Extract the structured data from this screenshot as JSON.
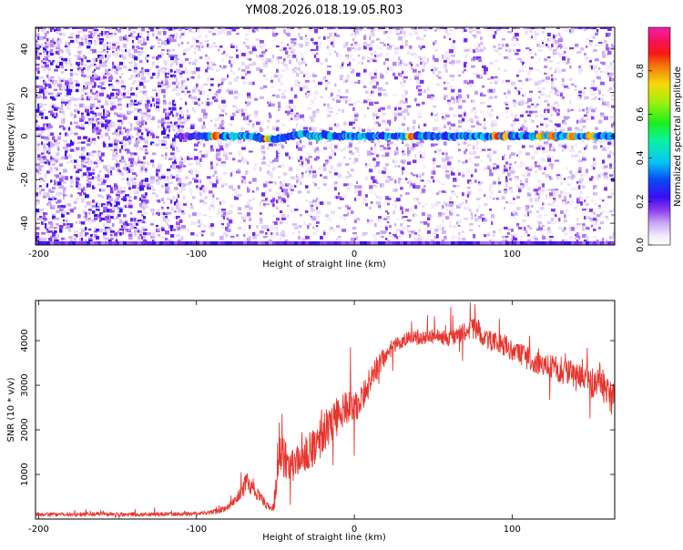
{
  "figure_title": "YM08.2026.018.19.05.R03",
  "chart_data": [
    {
      "type": "heatmap",
      "title": "YM08.2026.018.19.05.R03",
      "xlabel": "Height of straight line (km)",
      "ylabel": "Frequency (Hz)",
      "xlim": [
        -202,
        165
      ],
      "ylim": [
        -50,
        50
      ],
      "xticks": [
        -200,
        -100,
        0,
        100
      ],
      "yticks": [
        -40,
        -20,
        0,
        20,
        40
      ],
      "colorbar": {
        "label": "Normalized spectral amplitude",
        "range": [
          0,
          1
        ],
        "ticks": [
          0.0,
          0.2,
          0.4,
          0.6,
          0.8
        ],
        "tick_labels": [
          "0.0",
          "0.2",
          "0.4",
          "0.6",
          "0.8"
        ],
        "colormap": "rainbow (purple-blue-cyan-green-yellow-red-magenta)"
      },
      "ridge": {
        "frequency_hz": 0,
        "x_start_km": -110,
        "x_end_km": 165,
        "peak_amplitude": 0.9,
        "hotspots_km": [
          -87,
          -55,
          36,
          90,
          96,
          118,
          126,
          138,
          150
        ]
      },
      "noise_background_amplitude": [
        0.05,
        0.25
      ]
    },
    {
      "type": "line",
      "xlabel": "Height of straight line (km)",
      "ylabel": "SNR (10 * v/v)",
      "xlim": [
        -202,
        165
      ],
      "ylim": [
        0,
        4900
      ],
      "xticks": [
        -200,
        -100,
        0,
        100
      ],
      "yticks": [
        1000,
        2000,
        3000,
        4000
      ],
      "series": [
        {
          "name": "SNR",
          "color": "#e8342d",
          "x": [
            -202,
            -180,
            -160,
            -140,
            -120,
            -100,
            -90,
            -80,
            -75,
            -70,
            -68,
            -65,
            -60,
            -55,
            -52,
            -50,
            -48,
            -46,
            -44,
            -42,
            -40,
            -35,
            -30,
            -25,
            -20,
            -15,
            -10,
            -5,
            0,
            5,
            10,
            15,
            20,
            25,
            30,
            35,
            40,
            50,
            60,
            70,
            78,
            85,
            95,
            105,
            115,
            125,
            135,
            140,
            145,
            150,
            155,
            160,
            165
          ],
          "values": [
            100,
            100,
            110,
            100,
            110,
            120,
            150,
            250,
            450,
            700,
            900,
            700,
            500,
            300,
            250,
            500,
            1700,
            1300,
            1400,
            1000,
            1200,
            1300,
            1500,
            1600,
            1900,
            2200,
            2300,
            2500,
            2500,
            2700,
            3100,
            3400,
            3700,
            3900,
            4000,
            4050,
            4050,
            4100,
            4050,
            4200,
            4300,
            4000,
            3900,
            3700,
            3500,
            3400,
            3300,
            3200,
            3300,
            3000,
            3200,
            2800,
            2700
          ],
          "noise_amplitude": [
            45,
            45,
            45,
            45,
            45,
            45,
            50,
            80,
            120,
            180,
            250,
            180,
            130,
            90,
            80,
            300,
            600,
            500,
            450,
            400,
            380,
            380,
            400,
            420,
            450,
            450,
            420,
            380,
            350,
            330,
            300,
            250,
            200,
            180,
            170,
            160,
            160,
            170,
            180,
            200,
            260,
            250,
            240,
            250,
            260,
            270,
            280,
            300,
            320,
            330,
            350,
            350,
            330
          ]
        }
      ]
    }
  ]
}
